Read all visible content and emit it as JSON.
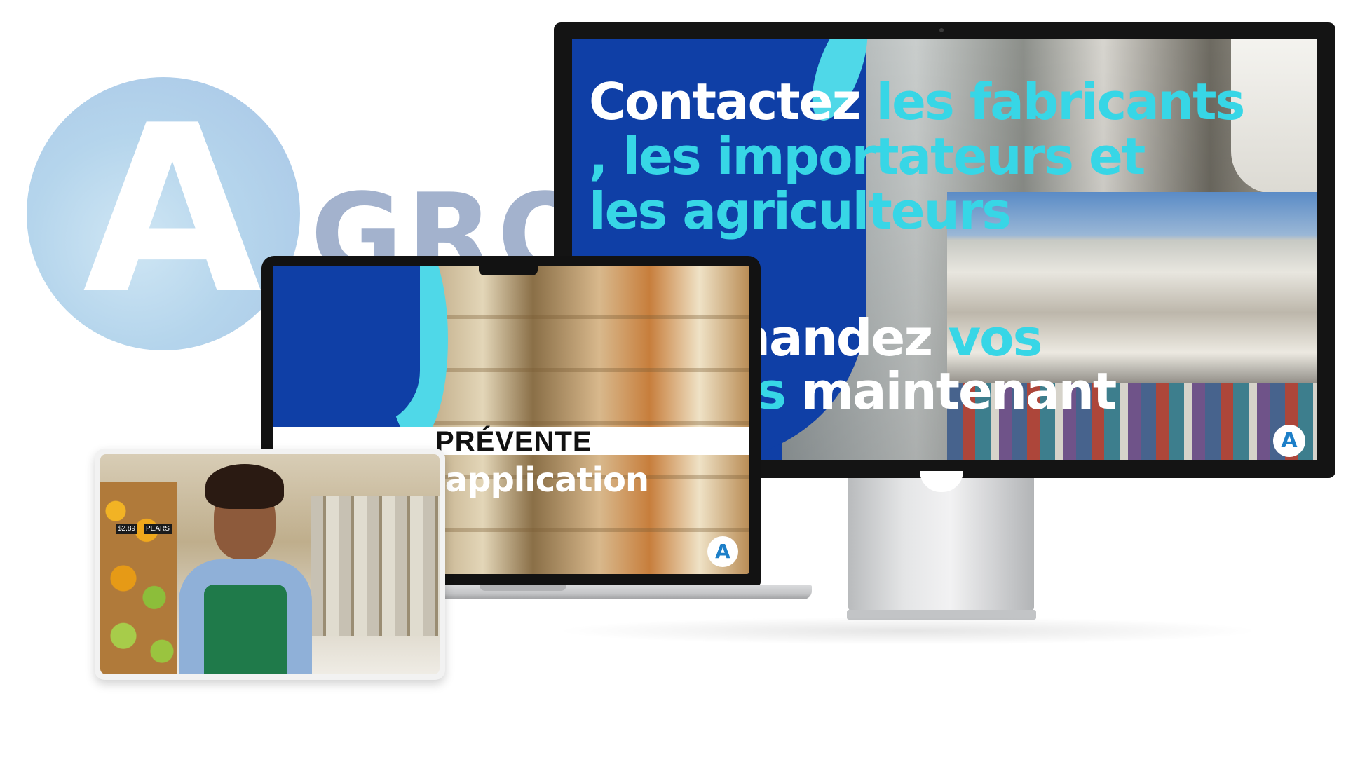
{
  "background_logo": {
    "letter": "A",
    "word": "GRO"
  },
  "monitor": {
    "headline": {
      "part1": "Contactez ",
      "part2": "les fabricants",
      "part3": ", les importateurs et",
      "part4": "les agriculteurs"
    },
    "subline": {
      "line1_white": "mandez ",
      "line1_cyan": "vos",
      "line2_cyan": "its ",
      "line2_white": "maintenant"
    },
    "badge": "A"
  },
  "laptop": {
    "title": "PRÉVENTE",
    "subtitle": "'application",
    "badge": "A"
  },
  "tablet": {
    "price_tags": [
      "$2.89",
      "PEARS"
    ]
  },
  "colors": {
    "brand_blue": "#0f3fa6",
    "brand_cyan": "#37d6e6",
    "logo_circle": "#b5d5ec",
    "logo_word": "#a3b2cd"
  }
}
